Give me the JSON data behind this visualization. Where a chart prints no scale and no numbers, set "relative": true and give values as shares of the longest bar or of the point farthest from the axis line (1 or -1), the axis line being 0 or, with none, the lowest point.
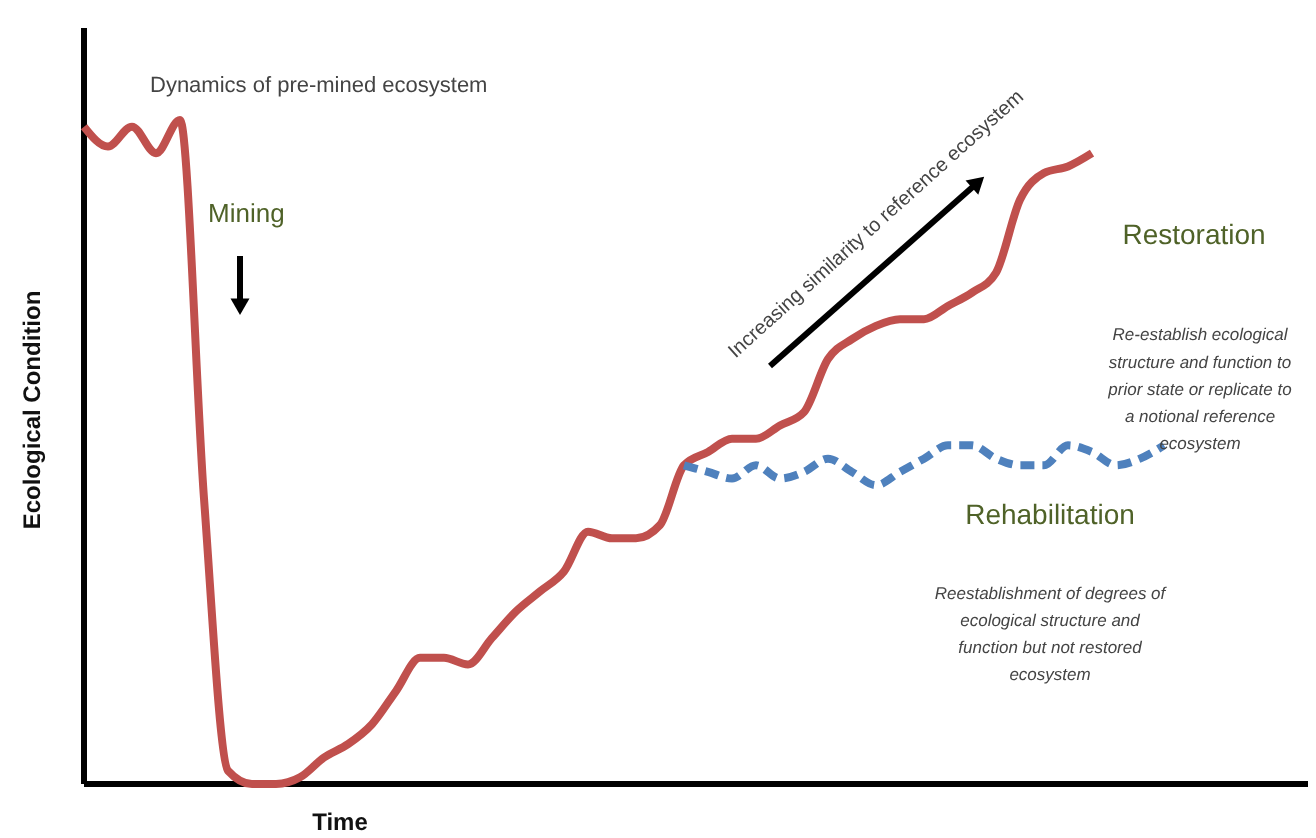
{
  "chart_data": {
    "type": "line",
    "relative": true,
    "xlabel": "Time",
    "ylabel": "Ecological Condition",
    "categories": [
      null,
      null,
      null,
      null,
      null,
      null,
      null,
      null,
      null,
      null,
      null,
      null,
      null,
      null,
      null,
      null,
      null,
      null,
      null,
      null,
      null,
      null,
      null,
      null,
      null,
      null,
      null,
      null,
      null,
      null,
      null,
      null,
      null,
      null,
      null,
      null,
      null,
      null,
      null,
      null,
      null,
      null,
      null,
      null,
      null,
      null
    ],
    "series": [
      {
        "name": "Restoration",
        "color": "#c0504d",
        "line_style": "solid",
        "values": [
          0.99,
          0.96,
          0.99,
          0.95,
          1.0,
          0.43,
          0.02,
          0,
          0,
          0.01,
          0.04,
          0.06,
          0.09,
          0.14,
          0.19,
          0.19,
          0.18,
          0.22,
          0.26,
          0.29,
          0.32,
          0.38,
          0.37,
          0.37,
          0.39,
          0.48,
          0.5,
          0.52,
          0.52,
          0.54,
          0.56,
          0.64,
          0.67,
          0.69,
          0.7,
          0.7,
          0.72,
          0.74,
          0.77,
          0.88,
          0.92,
          0.93,
          0.95,
          null,
          null,
          null
        ]
      },
      {
        "name": "Rehabilitation",
        "color": "#4f81bd",
        "line_style": "dashed",
        "values": [
          null,
          null,
          null,
          null,
          null,
          null,
          null,
          null,
          null,
          null,
          null,
          null,
          null,
          null,
          null,
          null,
          null,
          null,
          null,
          null,
          null,
          null,
          null,
          null,
          null,
          0.48,
          0.47,
          0.46,
          0.48,
          0.46,
          0.47,
          0.49,
          0.47,
          0.45,
          0.47,
          0.49,
          0.51,
          0.51,
          0.49,
          0.48,
          0.48,
          0.51,
          0.5,
          0.48,
          0.49,
          0.51
        ]
      }
    ],
    "annotations": [
      "Dynamics of pre-mined ecosystem",
      "Mining",
      "Increasing similarity to reference ecosystem",
      "Re-establish ecological structure and function to prior state or replicate to a notional reference ecosystem",
      "Reestablishment of degrees of ecological structure and function but not restored ecosystem"
    ]
  }
}
